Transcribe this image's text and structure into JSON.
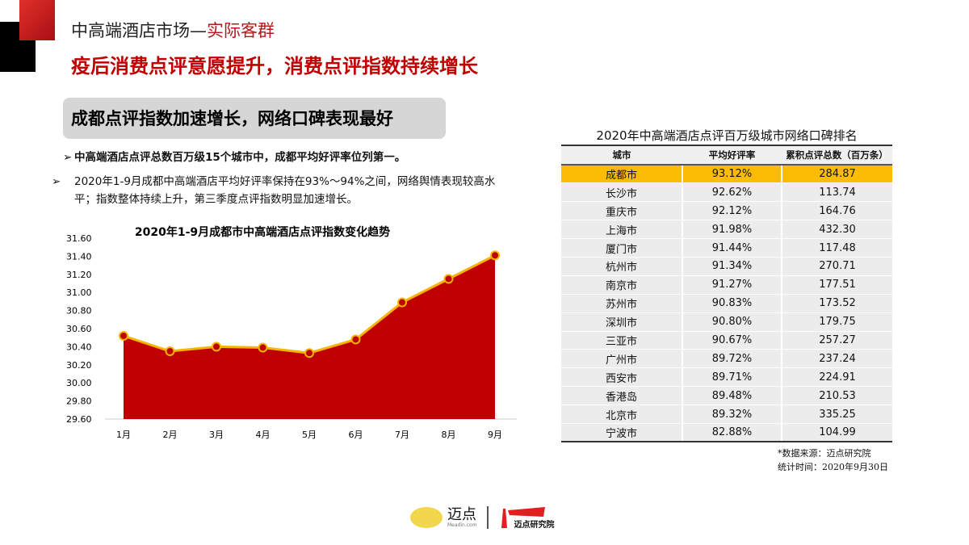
{
  "header": {
    "title_main": "中高端酒店市场—",
    "title_accent": "实际客群",
    "subtitle": "疫后消费点评意愿提升，消费点评指数持续增长"
  },
  "banner": "成都点评指数加速增长，网络口碑表现最好",
  "bullets": [
    "中高端酒店点评总数百万级15个城市中，成都平均好评率位列第一。",
    "2020年1-9月成都中高端酒店平均好评率保持在93%～94%之间，网络舆情表现较高水平；指数整体持续上升，第三季度点评指数明显加速增长。"
  ],
  "bullet_icon": "arrow-right-icon",
  "chart_data": {
    "type": "area",
    "title": "2020年1-9月成都市中高端酒店点评指数变化趋势",
    "categories": [
      "1月",
      "2月",
      "3月",
      "4月",
      "5月",
      "6月",
      "7月",
      "8月",
      "9月"
    ],
    "values": [
      30.52,
      30.35,
      30.4,
      30.39,
      30.33,
      30.48,
      30.89,
      31.15,
      31.41
    ],
    "ylim": [
      29.6,
      31.6
    ],
    "yticks": [
      "29.60",
      "29.80",
      "30.00",
      "30.20",
      "30.40",
      "30.60",
      "30.80",
      "31.00",
      "31.20",
      "31.40",
      "31.60"
    ],
    "xlabel": "",
    "ylabel": "",
    "grid": false,
    "colors": {
      "fill": "#c00000",
      "line": "#f7b500"
    }
  },
  "table": {
    "title": "2020年中高端酒店点评百万级城市网络口碑排名",
    "headers": [
      "城市",
      "平均好评率",
      "累积点评总数（百万条）"
    ],
    "rows": [
      [
        "成都市",
        "93.12%",
        "284.87"
      ],
      [
        "长沙市",
        "92.62%",
        "113.74"
      ],
      [
        "重庆市",
        "92.12%",
        "164.76"
      ],
      [
        "上海市",
        "91.98%",
        "432.30"
      ],
      [
        "厦门市",
        "91.44%",
        "117.48"
      ],
      [
        "杭州市",
        "91.34%",
        "270.71"
      ],
      [
        "南京市",
        "91.27%",
        "177.51"
      ],
      [
        "苏州市",
        "90.83%",
        "173.52"
      ],
      [
        "深圳市",
        "90.80%",
        "179.75"
      ],
      [
        "三亚市",
        "90.67%",
        "257.27"
      ],
      [
        "广州市",
        "89.72%",
        "237.24"
      ],
      [
        "西安市",
        "89.71%",
        "224.91"
      ],
      [
        "香港岛",
        "89.48%",
        "210.53"
      ],
      [
        "北京市",
        "89.32%",
        "335.25"
      ],
      [
        "宁波市",
        "82.88%",
        "104.99"
      ]
    ],
    "highlight_color": "#fbbc05"
  },
  "source": {
    "line1": "*数据来源：迈点研究院",
    "line2": "统计时间：2020年9月30日"
  },
  "logos": {
    "brand1": "迈点",
    "brand1_sub": "Meadin.com",
    "brand2": "迈点研究院"
  }
}
